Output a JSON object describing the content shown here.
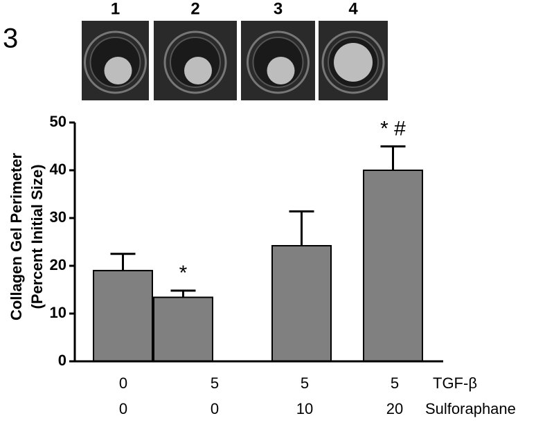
{
  "panel_label": "3",
  "photo_labels": [
    "1",
    "2",
    "3",
    "4"
  ],
  "chart_data": {
    "type": "bar",
    "y_label": [
      "Collagen Gel Perimeter",
      "(Percent Initial Size)"
    ],
    "row_labels": [
      "TGF-β",
      "Sulforaphane"
    ],
    "tgf_beta": [
      0,
      5,
      5,
      5
    ],
    "sulforaphane": [
      0,
      0,
      10,
      20
    ],
    "values": [
      19,
      13.4,
      24.2,
      40
    ],
    "errors": [
      3.5,
      1.4,
      7.2,
      5
    ],
    "annotations": [
      null,
      "*",
      null,
      "* #"
    ],
    "color": "#808080",
    "ylim": [
      0,
      50
    ],
    "yticks": [
      0,
      10,
      20,
      30,
      40,
      50
    ]
  }
}
